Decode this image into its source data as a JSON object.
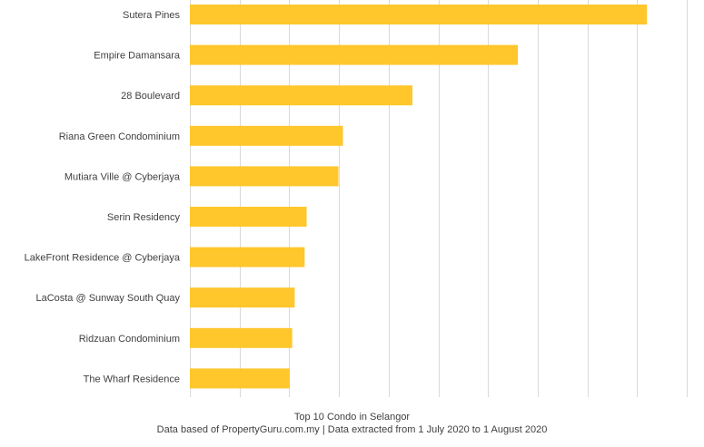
{
  "chart_data": {
    "type": "bar",
    "orientation": "horizontal",
    "categories": [
      "Sutera Pines",
      "Empire Damansara",
      "28 Boulevard",
      "Riana Green Condominium",
      "Mutiara Ville @ Cyberjaya",
      "Serin Residency",
      "LakeFront Residence @ Cyberjaya",
      "LaCosta @ Sunway South Quay",
      "Ridzuan Condominium",
      "The Wharf Residence"
    ],
    "values": [
      9.2,
      6.6,
      4.48,
      3.08,
      2.99,
      2.35,
      2.31,
      2.11,
      2.06,
      2.01
    ],
    "xlim": [
      0,
      10
    ],
    "x_major_step": 1,
    "grid": true,
    "bar_color": "#FFC72C",
    "grid_color": "#D9D9D9",
    "title": "Top 10 Condo in Selangor",
    "subtitle": "Data based of PropertyGuru.com.my | Data extracted from 1 July 2020 to 1 August 2020"
  }
}
